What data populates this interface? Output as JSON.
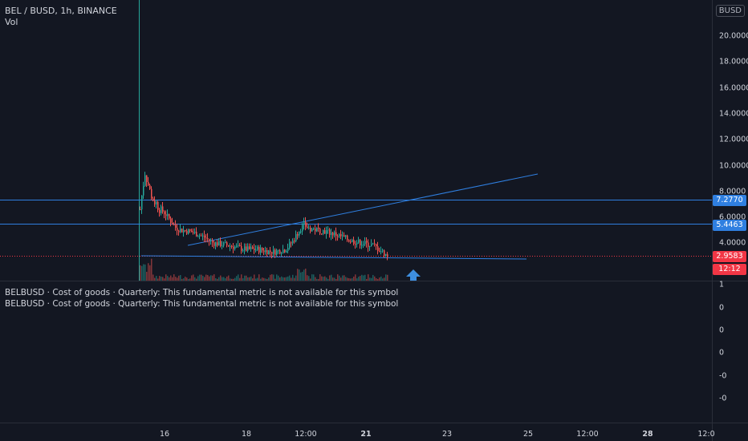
{
  "header": {
    "symbol_title": "BEL / BUSD, 1h, BINANCE",
    "volume_label": "Vol",
    "currency": "BUSD"
  },
  "price_axis": {
    "ticks": [
      "20.0000",
      "18.0000",
      "16.0000",
      "14.0000",
      "12.0000",
      "10.0000",
      "8.0000",
      "6.0000",
      "4.0000"
    ],
    "labels": {
      "level_high": "7.2770",
      "level_low": "5.4463",
      "last_price": "2.9583",
      "countdown": "12:12"
    }
  },
  "indicator_pane": {
    "notes": [
      "BELBUSD · Cost of goods · Quarterly: This fundamental metric is not available for this symbol",
      "BELBUSD · Cost of goods · Quarterly: This fundamental metric is not available for this symbol"
    ],
    "axis_ticks": [
      "1",
      "0",
      "0",
      "0",
      "-0",
      "-0"
    ]
  },
  "time_axis": {
    "labels": [
      {
        "text": "16",
        "bold": false
      },
      {
        "text": "18",
        "bold": false
      },
      {
        "text": "12:00",
        "bold": false
      },
      {
        "text": "21",
        "bold": true
      },
      {
        "text": "23",
        "bold": false
      },
      {
        "text": "25",
        "bold": false
      },
      {
        "text": "12:00",
        "bold": false
      },
      {
        "text": "28",
        "bold": true
      },
      {
        "text": "12:0",
        "bold": false
      }
    ]
  },
  "colors": {
    "background": "#131722",
    "up": "#26a69a",
    "down": "#ef5350",
    "line": "#2f7fe0",
    "last_price": "#f23645"
  },
  "annotations": {
    "arrow": "up-arrow-icon"
  }
}
